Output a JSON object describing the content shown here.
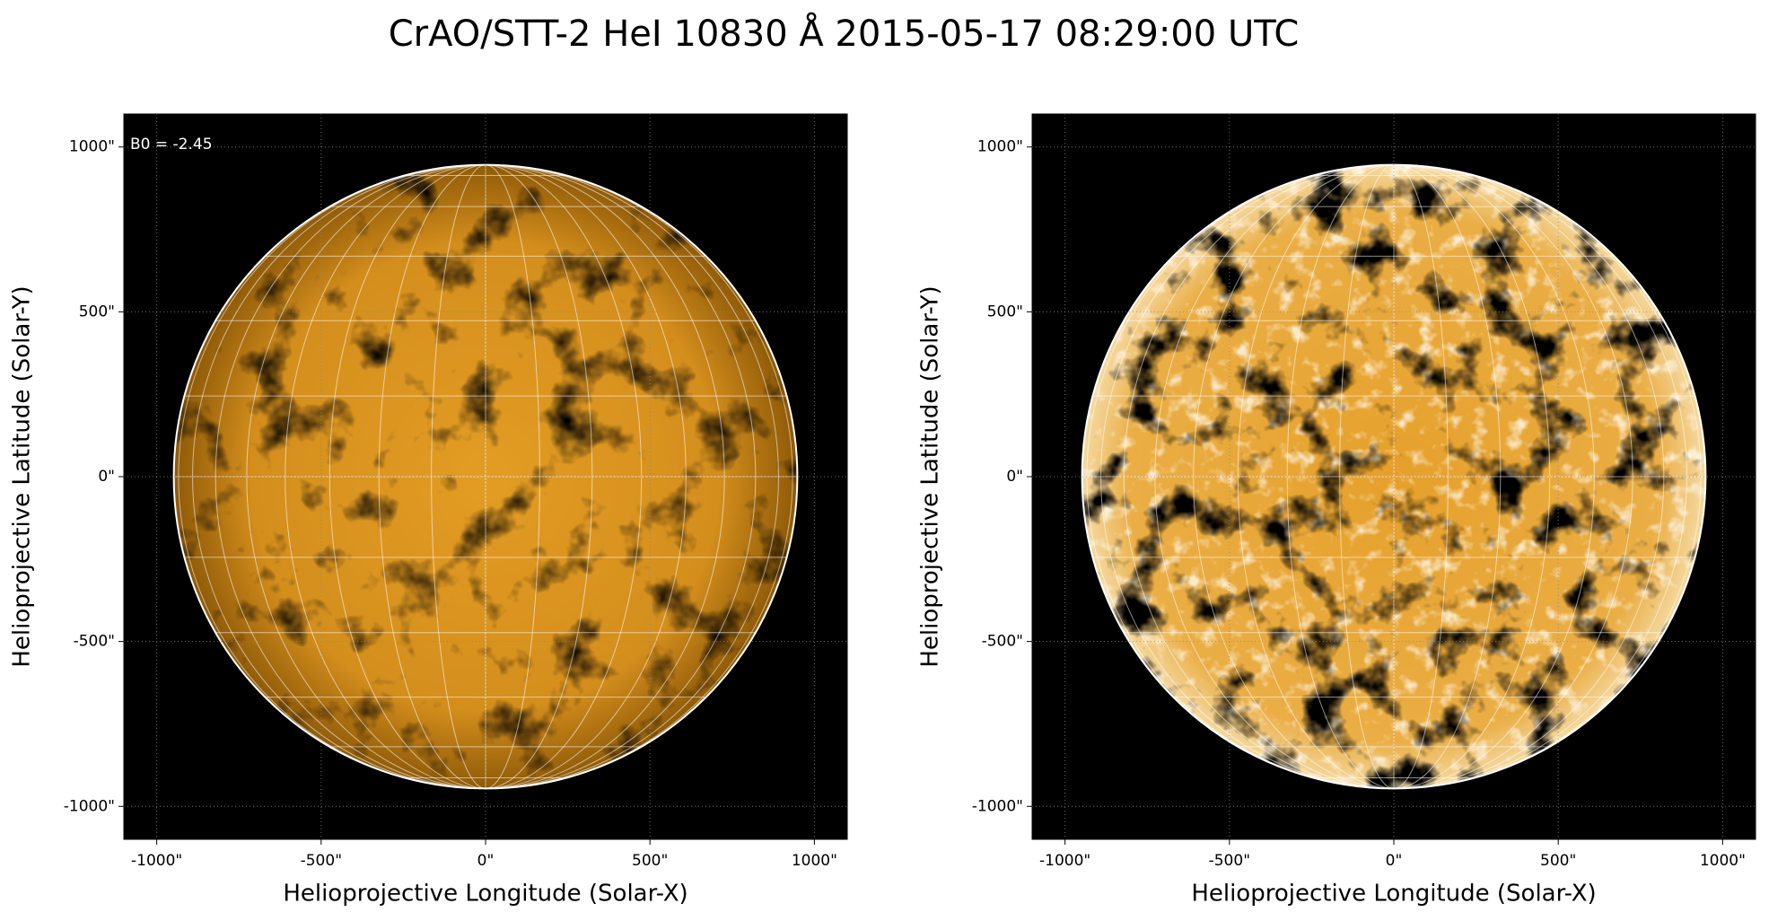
{
  "title": "CrAO/STT-2 HeI 10830 Å 2015-05-17 08:29:00 UTC",
  "chart_data": [
    {
      "type": "image",
      "annotation": "B0 = -2.45",
      "xlabel": "Helioprojective Longitude (Solar-X)",
      "ylabel": "Helioprojective Latitude (Solar-Y)",
      "xlim": [
        -1100,
        1100
      ],
      "ylim": [
        -1100,
        1100
      ],
      "xticks": [
        {
          "value": -1000,
          "label": "-1000\""
        },
        {
          "value": -500,
          "label": "-500\""
        },
        {
          "value": 0,
          "label": "0\""
        },
        {
          "value": 500,
          "label": "500\""
        },
        {
          "value": 1000,
          "label": "1000\""
        }
      ],
      "yticks": [
        {
          "value": -1000,
          "label": "-1000\""
        },
        {
          "value": -500,
          "label": "-500\""
        },
        {
          "value": 0,
          "label": "0\""
        },
        {
          "value": 500,
          "label": "500\""
        },
        {
          "value": 1000,
          "label": "1000\""
        }
      ],
      "grid": true
    },
    {
      "type": "image",
      "xlabel": "Helioprojective Longitude (Solar-X)",
      "ylabel": "Helioprojective Latitude (Solar-Y)",
      "xlim": [
        -1100,
        1100
      ],
      "ylim": [
        -1100,
        1100
      ],
      "xticks": [
        {
          "value": -1000,
          "label": "-1000\""
        },
        {
          "value": -500,
          "label": "-500\""
        },
        {
          "value": 0,
          "label": "0\""
        },
        {
          "value": 500,
          "label": "500\""
        },
        {
          "value": 1000,
          "label": "1000\""
        }
      ],
      "yticks": [
        {
          "value": -1000,
          "label": "-1000\""
        },
        {
          "value": -500,
          "label": "-500\""
        },
        {
          "value": 0,
          "label": "0\""
        },
        {
          "value": 500,
          "label": "500\""
        },
        {
          "value": 1000,
          "label": "1000\""
        }
      ],
      "grid": true
    }
  ]
}
